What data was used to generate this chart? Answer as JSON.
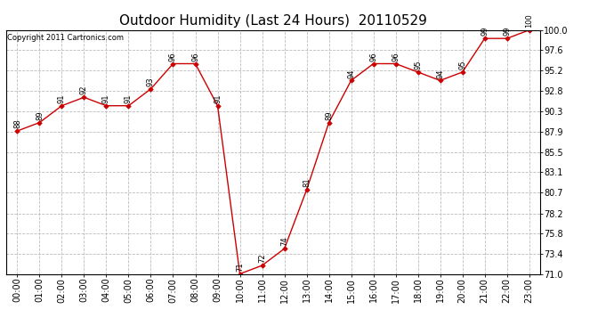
{
  "title": "Outdoor Humidity (Last 24 Hours)  20110529",
  "copyright": "Copyright 2011 Cartronics.com",
  "hours": [
    "00:00",
    "01:00",
    "02:00",
    "03:00",
    "04:00",
    "05:00",
    "06:00",
    "07:00",
    "08:00",
    "09:00",
    "10:00",
    "11:00",
    "12:00",
    "13:00",
    "14:00",
    "15:00",
    "16:00",
    "17:00",
    "18:00",
    "19:00",
    "20:00",
    "21:00",
    "22:00",
    "23:00"
  ],
  "values": [
    88,
    89,
    91,
    92,
    91,
    91,
    93,
    96,
    96,
    91,
    71,
    72,
    74,
    81,
    89,
    94,
    96,
    96,
    95,
    94,
    95,
    99,
    99,
    100
  ],
  "ylim": [
    71.0,
    100.0
  ],
  "yticks": [
    71.0,
    73.4,
    75.8,
    78.2,
    80.7,
    83.1,
    85.5,
    87.9,
    90.3,
    92.8,
    95.2,
    97.6,
    100.0
  ],
  "line_color": "#cc0000",
  "marker_color": "#cc0000",
  "bg_color": "#ffffff",
  "grid_color": "#bbbbbb",
  "title_fontsize": 11,
  "tick_fontsize": 7,
  "copyright_fontsize": 6,
  "annotation_fontsize": 6
}
